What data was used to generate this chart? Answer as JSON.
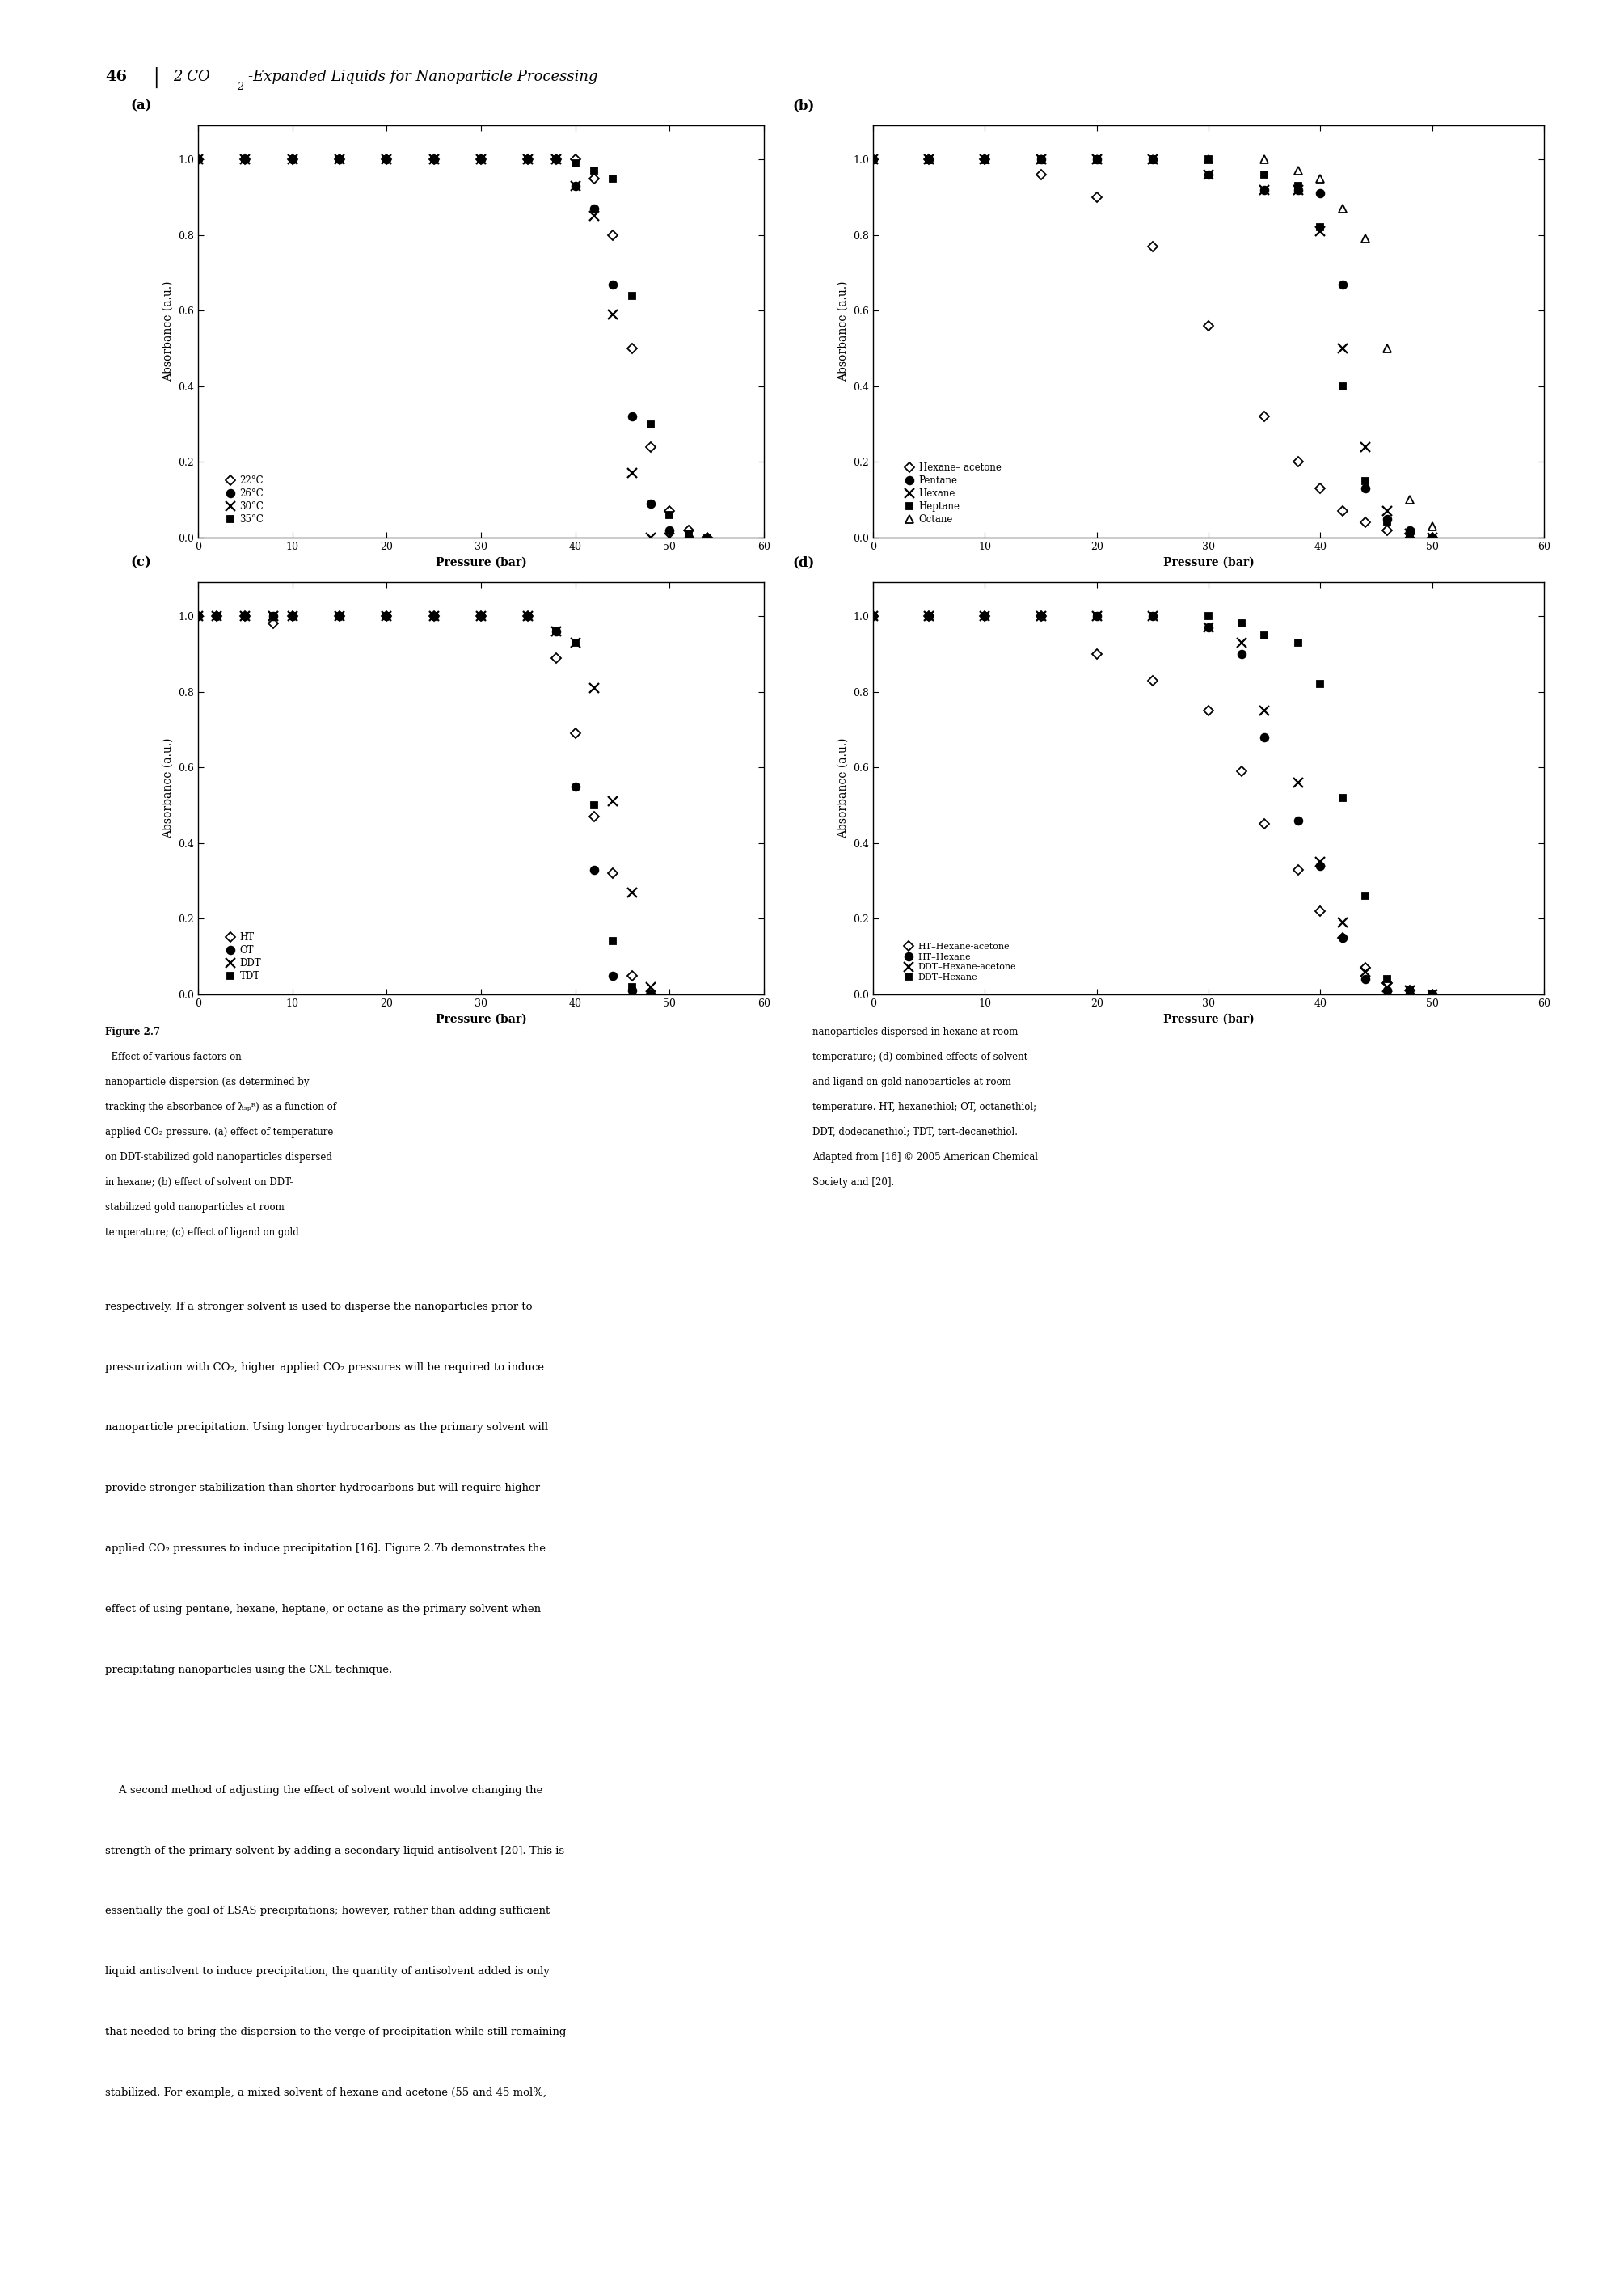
{
  "panel_a": {
    "label": "(a)",
    "series": [
      {
        "name": "22°C",
        "marker": "D",
        "filled": false,
        "x": [
          0,
          5,
          10,
          15,
          20,
          25,
          30,
          35,
          38,
          40,
          42,
          44,
          46,
          48,
          50,
          52,
          54
        ],
        "y": [
          1.0,
          1.0,
          1.0,
          1.0,
          1.0,
          1.0,
          1.0,
          1.0,
          1.0,
          1.0,
          0.95,
          0.8,
          0.5,
          0.24,
          0.07,
          0.02,
          0.0
        ]
      },
      {
        "name": "26°C",
        "marker": "o",
        "filled": true,
        "x": [
          0,
          5,
          10,
          15,
          20,
          25,
          30,
          35,
          38,
          40,
          42,
          44,
          46,
          48,
          50,
          52
        ],
        "y": [
          1.0,
          1.0,
          1.0,
          1.0,
          1.0,
          1.0,
          1.0,
          1.0,
          1.0,
          0.93,
          0.87,
          0.67,
          0.32,
          0.09,
          0.02,
          0.0
        ]
      },
      {
        "name": "30°C",
        "marker": "x",
        "filled": false,
        "x": [
          0,
          5,
          10,
          15,
          20,
          25,
          30,
          35,
          38,
          40,
          42,
          44,
          46,
          48,
          50
        ],
        "y": [
          1.0,
          1.0,
          1.0,
          1.0,
          1.0,
          1.0,
          1.0,
          1.0,
          1.0,
          0.93,
          0.85,
          0.59,
          0.17,
          0.0,
          0.0
        ]
      },
      {
        "name": "35°C",
        "marker": "s",
        "filled": true,
        "x": [
          0,
          5,
          10,
          15,
          20,
          25,
          30,
          35,
          38,
          40,
          42,
          44,
          46,
          48,
          50,
          52,
          54
        ],
        "y": [
          1.0,
          1.0,
          1.0,
          1.0,
          1.0,
          1.0,
          1.0,
          1.0,
          1.0,
          0.99,
          0.97,
          0.95,
          0.64,
          0.3,
          0.06,
          0.01,
          0.0
        ]
      }
    ]
  },
  "panel_b": {
    "label": "(b)",
    "series": [
      {
        "name": "Hexane– acetone",
        "marker": "D",
        "filled": false,
        "x": [
          0,
          5,
          10,
          15,
          20,
          25,
          30,
          35,
          38,
          40,
          42,
          44,
          46,
          48,
          50
        ],
        "y": [
          1.0,
          1.0,
          1.0,
          0.96,
          0.9,
          0.77,
          0.56,
          0.32,
          0.2,
          0.13,
          0.07,
          0.04,
          0.02,
          0.01,
          0.0
        ]
      },
      {
        "name": "Pentane",
        "marker": "o",
        "filled": true,
        "x": [
          0,
          5,
          10,
          15,
          20,
          25,
          30,
          35,
          38,
          40,
          42,
          44,
          46,
          48,
          50
        ],
        "y": [
          1.0,
          1.0,
          1.0,
          1.0,
          1.0,
          1.0,
          0.96,
          0.92,
          0.92,
          0.91,
          0.67,
          0.13,
          0.05,
          0.02,
          0.0
        ]
      },
      {
        "name": "Hexane",
        "marker": "x",
        "filled": false,
        "x": [
          0,
          5,
          10,
          15,
          20,
          25,
          30,
          35,
          38,
          40,
          42,
          44,
          46,
          48,
          50
        ],
        "y": [
          1.0,
          1.0,
          1.0,
          1.0,
          1.0,
          1.0,
          0.96,
          0.92,
          0.92,
          0.81,
          0.5,
          0.24,
          0.07,
          0.01,
          0.0
        ]
      },
      {
        "name": "Heptane",
        "marker": "s",
        "filled": true,
        "x": [
          0,
          5,
          10,
          15,
          20,
          25,
          30,
          35,
          38,
          40,
          42,
          44,
          46,
          48,
          50
        ],
        "y": [
          1.0,
          1.0,
          1.0,
          1.0,
          1.0,
          1.0,
          1.0,
          0.96,
          0.93,
          0.82,
          0.4,
          0.15,
          0.04,
          0.01,
          0.0
        ]
      },
      {
        "name": "Octane",
        "marker": "^",
        "filled": false,
        "x": [
          0,
          5,
          10,
          15,
          20,
          25,
          30,
          35,
          38,
          40,
          42,
          44,
          46,
          48,
          50
        ],
        "y": [
          1.0,
          1.0,
          1.0,
          1.0,
          1.0,
          1.0,
          1.0,
          1.0,
          0.97,
          0.95,
          0.87,
          0.79,
          0.5,
          0.1,
          0.03
        ]
      }
    ]
  },
  "panel_c": {
    "label": "(c)",
    "series": [
      {
        "name": "HT",
        "marker": "D",
        "filled": false,
        "x": [
          0,
          2,
          5,
          8,
          10,
          15,
          20,
          25,
          30,
          35,
          38,
          40,
          42,
          44,
          46,
          48
        ],
        "y": [
          1.0,
          1.0,
          1.0,
          0.98,
          1.0,
          1.0,
          1.0,
          1.0,
          1.0,
          1.0,
          0.89,
          0.69,
          0.47,
          0.32,
          0.05,
          0.0
        ]
      },
      {
        "name": "OT",
        "marker": "o",
        "filled": true,
        "x": [
          0,
          2,
          5,
          8,
          10,
          15,
          20,
          25,
          30,
          35,
          38,
          40,
          42,
          44,
          46,
          48
        ],
        "y": [
          1.0,
          1.0,
          1.0,
          1.0,
          1.0,
          1.0,
          1.0,
          1.0,
          1.0,
          1.0,
          0.96,
          0.55,
          0.33,
          0.05,
          0.01,
          0.0
        ]
      },
      {
        "name": "DDT",
        "marker": "x",
        "filled": false,
        "x": [
          0,
          2,
          5,
          8,
          10,
          15,
          20,
          25,
          30,
          35,
          38,
          40,
          42,
          44,
          46,
          48
        ],
        "y": [
          1.0,
          1.0,
          1.0,
          1.0,
          1.0,
          1.0,
          1.0,
          1.0,
          1.0,
          1.0,
          0.96,
          0.93,
          0.81,
          0.51,
          0.27,
          0.02
        ]
      },
      {
        "name": "TDT",
        "marker": "s",
        "filled": true,
        "x": [
          0,
          2,
          5,
          8,
          10,
          15,
          20,
          25,
          30,
          35,
          38,
          40,
          42,
          44,
          46,
          48
        ],
        "y": [
          1.0,
          1.0,
          1.0,
          1.0,
          1.0,
          1.0,
          1.0,
          1.0,
          1.0,
          1.0,
          0.96,
          0.93,
          0.5,
          0.14,
          0.02,
          0.0
        ]
      }
    ]
  },
  "panel_d": {
    "label": "(d)",
    "series": [
      {
        "name": "HT–Hexane-acetone",
        "marker": "D",
        "filled": false,
        "x": [
          0,
          5,
          10,
          15,
          20,
          25,
          30,
          33,
          35,
          38,
          40,
          42,
          44,
          46,
          48,
          50
        ],
        "y": [
          1.0,
          1.0,
          1.0,
          1.0,
          0.9,
          0.83,
          0.75,
          0.59,
          0.45,
          0.33,
          0.22,
          0.15,
          0.07,
          0.03,
          0.01,
          0.0
        ]
      },
      {
        "name": "HT–Hexane",
        "marker": "o",
        "filled": true,
        "x": [
          0,
          5,
          10,
          15,
          20,
          25,
          30,
          33,
          35,
          38,
          40,
          42,
          44,
          46,
          48,
          50
        ],
        "y": [
          1.0,
          1.0,
          1.0,
          1.0,
          1.0,
          1.0,
          0.97,
          0.9,
          0.68,
          0.46,
          0.34,
          0.15,
          0.04,
          0.01,
          0.0,
          0.0
        ]
      },
      {
        "name": "DDT–Hexane-acetone",
        "marker": "x",
        "filled": false,
        "x": [
          0,
          5,
          10,
          15,
          20,
          25,
          30,
          33,
          35,
          38,
          40,
          42,
          44,
          46,
          48,
          50
        ],
        "y": [
          1.0,
          1.0,
          1.0,
          1.0,
          1.0,
          1.0,
          0.97,
          0.93,
          0.75,
          0.56,
          0.35,
          0.19,
          0.06,
          0.02,
          0.01,
          0.0
        ]
      },
      {
        "name": "DDT–Hexane",
        "marker": "s",
        "filled": true,
        "x": [
          0,
          5,
          10,
          15,
          20,
          25,
          30,
          33,
          35,
          38,
          40,
          42,
          44,
          46,
          48,
          50
        ],
        "y": [
          1.0,
          1.0,
          1.0,
          1.0,
          1.0,
          1.0,
          1.0,
          0.98,
          0.95,
          0.93,
          0.82,
          0.52,
          0.26,
          0.04,
          0.01,
          0.0
        ]
      }
    ]
  },
  "xlim": [
    0,
    60
  ],
  "ylim": [
    0,
    1.09
  ],
  "xticks": [
    0,
    10,
    20,
    30,
    40,
    50,
    60
  ],
  "yticks": [
    0,
    0.2,
    0.4,
    0.6,
    0.8,
    1.0
  ],
  "xlabel": "Pressure (bar)",
  "ylabel": "Absorbance (a.u.)"
}
